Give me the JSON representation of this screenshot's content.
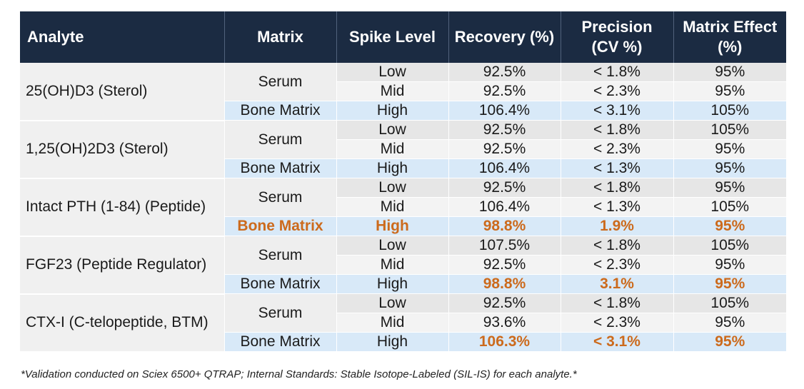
{
  "table": {
    "headers": [
      "Analyte",
      "Matrix",
      "Spike Level",
      "Recovery (%)",
      "Precision\n(CV %)",
      "Matrix Effect\n(%)"
    ],
    "groups": [
      {
        "analyte": "25(OH)D3 (Sterol)",
        "serum_label": "Serum",
        "rows": [
          {
            "matrix": "",
            "level": "Low",
            "recovery": "92.5%",
            "precision": "< 1.8%",
            "matrix_effect": "95%",
            "highlight": []
          },
          {
            "matrix": "",
            "level": "Mid",
            "recovery": "92.5%",
            "precision": "< 2.3%",
            "matrix_effect": "95%",
            "highlight": []
          },
          {
            "matrix": "Bone Matrix",
            "level": "High",
            "recovery": "106.4%",
            "precision": "< 3.1%",
            "matrix_effect": "105%",
            "highlight": []
          }
        ]
      },
      {
        "analyte": "1,25(OH)2D3 (Sterol)",
        "serum_label": "Serum",
        "rows": [
          {
            "matrix": "",
            "level": "Low",
            "recovery": "92.5%",
            "precision": "< 1.8%",
            "matrix_effect": "105%",
            "highlight": []
          },
          {
            "matrix": "",
            "level": "Mid",
            "recovery": "92.5%",
            "precision": "< 2.3%",
            "matrix_effect": "95%",
            "highlight": []
          },
          {
            "matrix": "Bone Matrix",
            "level": "High",
            "recovery": "106.4%",
            "precision": "< 1.3%",
            "matrix_effect": "95%",
            "highlight": []
          }
        ]
      },
      {
        "analyte": "Intact PTH (1-84) (Peptide)",
        "serum_label": "Serum",
        "rows": [
          {
            "matrix": "",
            "level": "Low",
            "recovery": "92.5%",
            "precision": "< 1.8%",
            "matrix_effect": "95%",
            "highlight": []
          },
          {
            "matrix": "",
            "level": "Mid",
            "recovery": "106.4%",
            "precision": "< 1.3%",
            "matrix_effect": "105%",
            "highlight": []
          },
          {
            "matrix": "Bone Matrix",
            "level": "High",
            "recovery": "98.8%",
            "precision": "1.9%",
            "matrix_effect": "95%",
            "highlight": [
              "matrix",
              "level",
              "recovery",
              "precision",
              "matrix_effect"
            ]
          }
        ]
      },
      {
        "analyte": "FGF23 (Peptide Regulator)",
        "serum_label": "Serum",
        "rows": [
          {
            "matrix": "",
            "level": "Low",
            "recovery": "107.5%",
            "precision": "< 1.8%",
            "matrix_effect": "105%",
            "highlight": []
          },
          {
            "matrix": "",
            "level": "Mid",
            "recovery": "92.5%",
            "precision": "< 2.3%",
            "matrix_effect": "95%",
            "highlight": []
          },
          {
            "matrix": "Bone Matrix",
            "level": "High",
            "recovery": "98.8%",
            "precision": "3.1%",
            "matrix_effect": "95%",
            "highlight": [
              "recovery",
              "precision",
              "matrix_effect"
            ]
          }
        ]
      },
      {
        "analyte": "CTX-I (C-telopeptide, BTM)",
        "serum_label": "Serum",
        "rows": [
          {
            "matrix": "",
            "level": "Low",
            "recovery": "92.5%",
            "precision": "< 1.8%",
            "matrix_effect": "105%",
            "highlight": []
          },
          {
            "matrix": "",
            "level": "Mid",
            "recovery": "93.6%",
            "precision": "< 2.3%",
            "matrix_effect": "95%",
            "highlight": []
          },
          {
            "matrix": "Bone Matrix",
            "level": "High",
            "recovery": "106.3%",
            "precision": "< 3.1%",
            "matrix_effect": "95%",
            "highlight": [
              "recovery",
              "precision",
              "matrix_effect"
            ]
          }
        ]
      }
    ]
  },
  "footnote": "*Validation conducted on Sciex 6500+ QTRAP; Internal Standards: Stable Isotope-Labeled (SIL-IS) for each analyte.*",
  "colors": {
    "header_bg": "#1b2b42",
    "highlight_text": "#cc6a1c",
    "bone_row_bg": "#d8e9f8"
  }
}
